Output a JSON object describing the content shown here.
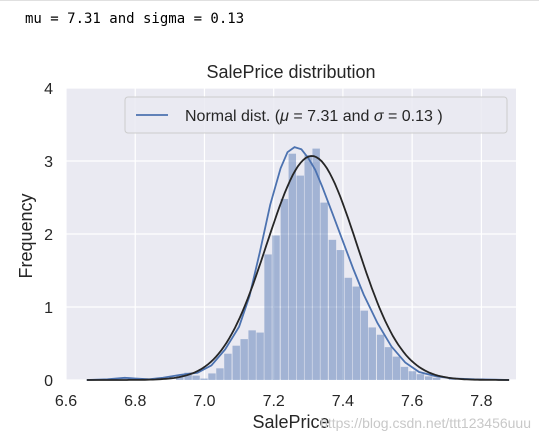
{
  "console_output": "mu = 7.31 and sigma = 0.13",
  "watermark": "https://blog.csdn.net/ttt123456uuu",
  "chart_data": {
    "type": "bar",
    "title": "SalePrice distribution",
    "xlabel": "SalePrice",
    "ylabel": "Frequency",
    "xlim": [
      6.6,
      7.9
    ],
    "ylim": [
      0,
      4
    ],
    "xticks": [
      "6.6",
      "6.8",
      "7.0",
      "7.2",
      "7.4",
      "7.6",
      "7.8"
    ],
    "yticks": [
      "0",
      "1",
      "2",
      "3",
      "4"
    ],
    "grid": true,
    "legend_position": "top-right",
    "legend": {
      "prefix": "Normal dist. (",
      "mu_sym": "μ",
      "mid": " = 7.31 and ",
      "sigma_sym": "σ",
      "suffix": " = 0.13 )"
    },
    "colors": {
      "hist": "#4c72b0",
      "kde": "#4c72b0",
      "fit": "#262626",
      "background": "#eaeaf2"
    },
    "histogram": {
      "bin_width": 0.0232,
      "bins": [
        {
          "x": 6.779,
          "y": 0.02
        },
        {
          "x": 6.803,
          "y": 0.02
        },
        {
          "x": 6.825,
          "y": 0.02
        },
        {
          "x": 6.918,
          "y": 0.06
        },
        {
          "x": 6.942,
          "y": 0.1
        },
        {
          "x": 6.965,
          "y": 0.06
        },
        {
          "x": 6.988,
          "y": 0.02
        },
        {
          "x": 7.011,
          "y": 0.09
        },
        {
          "x": 7.034,
          "y": 0.16
        },
        {
          "x": 7.057,
          "y": 0.36
        },
        {
          "x": 7.081,
          "y": 0.47
        },
        {
          "x": 7.104,
          "y": 0.56
        },
        {
          "x": 7.127,
          "y": 0.68
        },
        {
          "x": 7.15,
          "y": 0.65
        },
        {
          "x": 7.173,
          "y": 1.72
        },
        {
          "x": 7.196,
          "y": 1.98
        },
        {
          "x": 7.22,
          "y": 2.48
        },
        {
          "x": 7.243,
          "y": 3.1
        },
        {
          "x": 7.266,
          "y": 2.8
        },
        {
          "x": 7.289,
          "y": 3.08
        },
        {
          "x": 7.312,
          "y": 3.17
        },
        {
          "x": 7.335,
          "y": 2.43
        },
        {
          "x": 7.359,
          "y": 1.92
        },
        {
          "x": 7.382,
          "y": 1.78
        },
        {
          "x": 7.405,
          "y": 1.4
        },
        {
          "x": 7.428,
          "y": 1.28
        },
        {
          "x": 7.451,
          "y": 0.95
        },
        {
          "x": 7.474,
          "y": 0.72
        },
        {
          "x": 7.498,
          "y": 0.62
        },
        {
          "x": 7.521,
          "y": 0.45
        },
        {
          "x": 7.544,
          "y": 0.32
        },
        {
          "x": 7.567,
          "y": 0.18
        },
        {
          "x": 7.59,
          "y": 0.12
        },
        {
          "x": 7.613,
          "y": 0.08
        },
        {
          "x": 7.637,
          "y": 0.05
        },
        {
          "x": 7.66,
          "y": 0.03
        },
        {
          "x": 7.706,
          "y": 0.02
        },
        {
          "x": 7.753,
          "y": 0.02
        }
      ]
    },
    "kde": {
      "x": [
        6.66,
        6.72,
        6.77,
        6.8,
        6.84,
        6.88,
        6.93,
        6.98,
        7.02,
        7.06,
        7.1,
        7.13,
        7.16,
        7.19,
        7.22,
        7.24,
        7.26,
        7.28,
        7.3,
        7.32,
        7.34,
        7.37,
        7.4,
        7.43,
        7.46,
        7.5,
        7.54,
        7.58,
        7.62,
        7.67,
        7.72,
        7.78,
        7.84,
        7.88
      ],
      "y": [
        0.0,
        0.01,
        0.03,
        0.02,
        0.01,
        0.03,
        0.07,
        0.1,
        0.2,
        0.42,
        0.73,
        1.15,
        1.75,
        2.4,
        2.9,
        3.12,
        3.19,
        3.16,
        3.04,
        2.88,
        2.65,
        2.28,
        1.9,
        1.52,
        1.17,
        0.78,
        0.46,
        0.24,
        0.11,
        0.05,
        0.02,
        0.01,
        0.005,
        0.0
      ]
    },
    "normal_fit": {
      "mu": 7.31,
      "sigma": 0.13,
      "x_range": [
        6.66,
        7.88
      ]
    }
  }
}
